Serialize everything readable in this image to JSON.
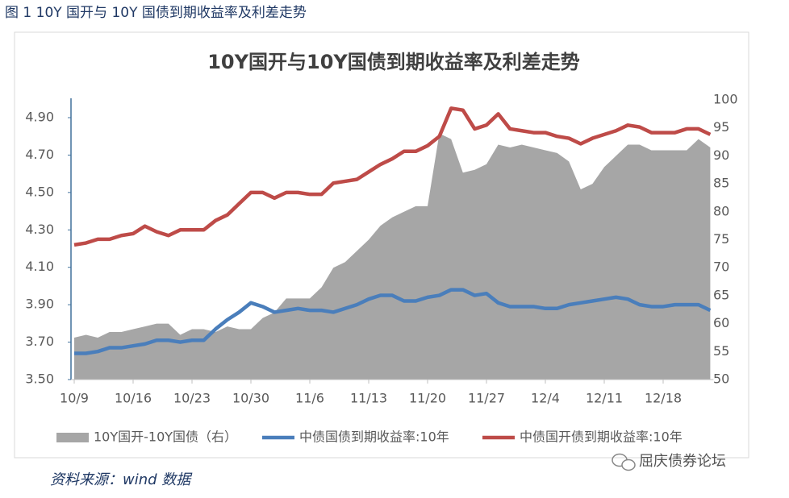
{
  "caption": "图 1 10Y 国开与 10Y 国债到期收益率及利差走势",
  "source": "资料来源：wind  数据",
  "watermark": "屈庆债券论坛",
  "chart_data": {
    "type": "combo",
    "title": "10Y国开与10Y国债到期收益率及利差走势",
    "categories": [
      "10/9",
      null,
      null,
      null,
      null,
      "10/16",
      null,
      null,
      null,
      null,
      "10/23",
      null,
      null,
      null,
      null,
      "10/30",
      null,
      null,
      null,
      null,
      "11/6",
      null,
      null,
      null,
      null,
      "11/13",
      null,
      null,
      null,
      null,
      "11/20",
      null,
      null,
      null,
      null,
      "11/27",
      null,
      null,
      null,
      null,
      "12/4",
      null,
      null,
      null,
      null,
      "12/11",
      null,
      null,
      null,
      null,
      "12/18",
      null,
      null,
      null,
      null
    ],
    "ylim": [
      3.5,
      4.9
    ],
    "yticks": [
      {
        "value": 3.5,
        "label": "3.50"
      },
      {
        "value": 3.7,
        "label": "3.70"
      },
      {
        "value": 3.9,
        "label": "3.90"
      },
      {
        "value": 4.1,
        "label": "4.10"
      },
      {
        "value": 4.3,
        "label": "4.30"
      },
      {
        "value": 4.5,
        "label": "4.50"
      },
      {
        "value": 4.7,
        "label": "4.70"
      },
      {
        "value": 4.9,
        "label": "4.90"
      }
    ],
    "y2lim": [
      50,
      100
    ],
    "y2ticks": [
      50,
      55,
      60,
      65,
      70,
      75,
      80,
      85,
      90,
      95,
      100
    ],
    "legend": "bottom",
    "series": [
      {
        "name": "10Y国开-10Y国债（右）",
        "type": "area",
        "axis": "y2",
        "color": "#a6a6a6",
        "values": [
          57.5,
          58,
          57.5,
          58.5,
          58.5,
          59,
          59.5,
          60,
          60,
          58,
          59,
          59,
          58.5,
          59.5,
          59,
          59,
          61,
          62,
          64.5,
          64.5,
          64.5,
          66.5,
          70,
          71,
          73,
          75,
          77.5,
          79,
          80,
          81,
          81,
          94,
          93,
          87,
          87.5,
          88.5,
          92,
          91.5,
          92,
          91.5,
          91,
          90.5,
          89,
          84,
          85,
          88,
          90,
          92,
          92,
          91,
          91,
          91,
          91,
          93,
          91.5
        ]
      },
      {
        "name": "中债国债到期收益率:10年",
        "type": "line",
        "color": "#4a7ebb",
        "values": [
          3.64,
          3.64,
          3.65,
          3.67,
          3.67,
          3.68,
          3.69,
          3.71,
          3.71,
          3.7,
          3.71,
          3.71,
          3.77,
          3.82,
          3.86,
          3.91,
          3.89,
          3.86,
          3.87,
          3.88,
          3.87,
          3.87,
          3.86,
          3.88,
          3.9,
          3.93,
          3.95,
          3.95,
          3.92,
          3.92,
          3.94,
          3.95,
          3.98,
          3.98,
          3.95,
          3.96,
          3.91,
          3.89,
          3.89,
          3.89,
          3.88,
          3.88,
          3.9,
          3.91,
          3.92,
          3.93,
          3.94,
          3.93,
          3.9,
          3.89,
          3.89,
          3.9,
          3.9,
          3.9,
          3.87
        ]
      },
      {
        "name": "中债国开债到期收益率:10年",
        "type": "line",
        "color": "#be4b48",
        "values": [
          4.22,
          4.23,
          4.25,
          4.25,
          4.27,
          4.28,
          4.32,
          4.29,
          4.27,
          4.3,
          4.3,
          4.3,
          4.35,
          4.38,
          4.44,
          4.5,
          4.5,
          4.47,
          4.5,
          4.5,
          4.49,
          4.49,
          4.55,
          4.56,
          4.57,
          4.61,
          4.65,
          4.68,
          4.72,
          4.72,
          4.75,
          4.8,
          4.95,
          4.94,
          4.84,
          4.86,
          4.92,
          4.84,
          4.83,
          4.82,
          4.82,
          4.8,
          4.79,
          4.76,
          4.79,
          4.81,
          4.83,
          4.86,
          4.85,
          4.82,
          4.82,
          4.82,
          4.84,
          4.84,
          4.81
        ]
      }
    ]
  }
}
